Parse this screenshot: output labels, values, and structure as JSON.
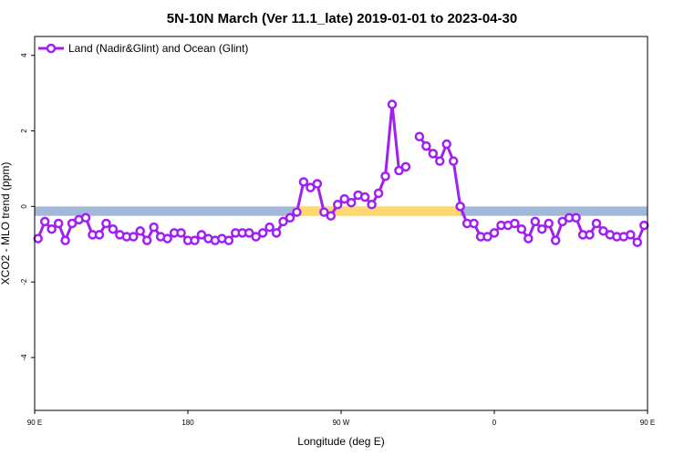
{
  "chart_data": {
    "type": "line",
    "title": "5N-10N March (Ver 11.1_late)   2019-01-01 to 2023-04-30",
    "xlabel": "Longitude (deg E)",
    "ylabel": "XCO2 - MLO trend (ppm)",
    "xlim": [
      90,
      450
    ],
    "ylim": [
      -5.4,
      4.5
    ],
    "x_ticks": [
      {
        "value": 90,
        "label": "90 E"
      },
      {
        "value": 180,
        "label": "180"
      },
      {
        "value": 270,
        "label": "90 W"
      },
      {
        "value": 360,
        "label": "0"
      },
      {
        "value": 450,
        "label": "90 E"
      },
      {
        "value": 540,
        "label": "180"
      }
    ],
    "y_ticks": [
      {
        "value": 4,
        "label": "4"
      },
      {
        "value": 2,
        "label": "2"
      },
      {
        "value": 0,
        "label": "0"
      },
      {
        "value": -2,
        "label": "-2"
      },
      {
        "value": -4,
        "label": "-4"
      }
    ],
    "legend": {
      "placement": "top-left"
    },
    "colors": {
      "series": "#a020f0",
      "ocean": "#a3b8d8",
      "land": "#ffd870"
    },
    "series": [
      {
        "name": "Land (Nadir&Glint) and Ocean (Glint)",
        "segments": [
          [
            [
              92,
              -0.85
            ],
            [
              96,
              -0.4
            ],
            [
              100,
              -0.6
            ],
            [
              104,
              -0.45
            ],
            [
              108,
              -0.9
            ],
            [
              112,
              -0.45
            ],
            [
              116,
              -0.35
            ],
            [
              120,
              -0.3
            ],
            [
              124,
              -0.75
            ],
            [
              128,
              -0.75
            ],
            [
              132,
              -0.45
            ],
            [
              136,
              -0.6
            ],
            [
              140,
              -0.75
            ],
            [
              144,
              -0.8
            ],
            [
              148,
              -0.8
            ],
            [
              152,
              -0.65
            ],
            [
              156,
              -0.9
            ],
            [
              160,
              -0.55
            ],
            [
              164,
              -0.8
            ],
            [
              168,
              -0.85
            ],
            [
              172,
              -0.7
            ],
            [
              176,
              -0.7
            ],
            [
              180,
              -0.9
            ],
            [
              184,
              -0.9
            ],
            [
              188,
              -0.75
            ],
            [
              192,
              -0.85
            ],
            [
              196,
              -0.9
            ],
            [
              200,
              -0.85
            ],
            [
              204,
              -0.9
            ],
            [
              208,
              -0.7
            ],
            [
              212,
              -0.7
            ],
            [
              216,
              -0.7
            ],
            [
              220,
              -0.8
            ],
            [
              224,
              -0.7
            ],
            [
              228,
              -0.55
            ],
            [
              232,
              -0.7
            ],
            [
              236,
              -0.4
            ],
            [
              240,
              -0.3
            ],
            [
              244,
              -0.15
            ],
            [
              248,
              0.65
            ],
            [
              252,
              0.5
            ],
            [
              256,
              0.6
            ],
            [
              260,
              -0.15
            ],
            [
              264,
              -0.25
            ],
            [
              268,
              0.05
            ],
            [
              272,
              0.2
            ],
            [
              276,
              0.1
            ],
            [
              280,
              0.3
            ],
            [
              284,
              0.25
            ],
            [
              288,
              0.05
            ],
            [
              292,
              0.35
            ],
            [
              296,
              0.8
            ],
            [
              300,
              2.7
            ],
            [
              304,
              0.95
            ],
            [
              308,
              1.05
            ]
          ],
          [
            [
              316,
              1.85
            ],
            [
              320,
              1.6
            ],
            [
              324,
              1.4
            ],
            [
              328,
              1.2
            ],
            [
              332,
              1.65
            ],
            [
              336,
              1.2
            ],
            [
              340,
              0.0
            ],
            [
              344,
              -0.45
            ],
            [
              348,
              -0.45
            ],
            [
              352,
              -0.8
            ],
            [
              356,
              -0.8
            ],
            [
              360,
              -0.7
            ],
            [
              364,
              -0.5
            ],
            [
              368,
              -0.5
            ],
            [
              372,
              -0.45
            ],
            [
              376,
              -0.6
            ],
            [
              380,
              -0.85
            ],
            [
              384,
              -0.4
            ],
            [
              388,
              -0.6
            ],
            [
              392,
              -0.45
            ],
            [
              396,
              -0.9
            ],
            [
              400,
              -0.4
            ],
            [
              404,
              -0.3
            ],
            [
              408,
              -0.3
            ],
            [
              412,
              -0.75
            ],
            [
              416,
              -0.75
            ],
            [
              420,
              -0.45
            ],
            [
              424,
              -0.65
            ],
            [
              428,
              -0.75
            ],
            [
              432,
              -0.8
            ],
            [
              436,
              -0.8
            ],
            [
              440,
              -0.75
            ],
            [
              444,
              -0.95
            ],
            [
              448,
              -0.5
            ]
          ]
        ]
      }
    ],
    "land_ocean_band": {
      "y_range": [
        -0.25,
        0.0
      ],
      "land_ranges": [
        [
          243,
          340
        ]
      ]
    }
  }
}
